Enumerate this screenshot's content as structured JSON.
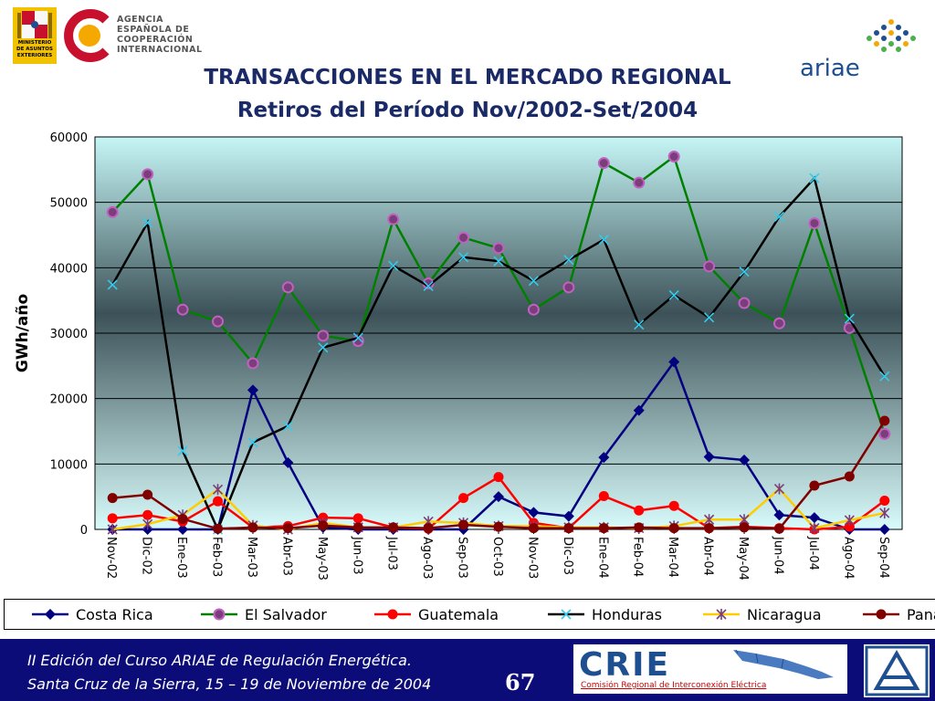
{
  "header": {
    "agency_lines": [
      "AGENCIA",
      "ESPAÑOLA DE",
      "COOPERACIÓN",
      "INTERNACIONAL"
    ],
    "ministry_lines": [
      "MINISTERIO",
      "DE ASUNTOS",
      "EXTERIORES"
    ],
    "ariae_logo": "ariae"
  },
  "chart_data": {
    "type": "line",
    "title": "TRANSACCIONES EN EL MERCADO REGIONAL",
    "subtitle": "Retiros del Período Nov/2002-Set/2004",
    "ylabel": "GWh/año",
    "xlabel": "",
    "ylim": [
      0,
      60000
    ],
    "yticks": [
      0,
      10000,
      20000,
      30000,
      40000,
      50000,
      60000
    ],
    "grid": true,
    "legend_position": "bottom",
    "categories": [
      "Nov-02",
      "Dic-02",
      "Ene-03",
      "Feb-03",
      "Mar-03",
      "Abr-03",
      "May-03",
      "Jun-03",
      "Jul-03",
      "Ago-03",
      "Sep-03",
      "Oct-03",
      "Nov-03",
      "Dic-03",
      "Ene-04",
      "Feb-04",
      "Mar-04",
      "Abr-04",
      "May-04",
      "Jun-04",
      "Jul-04",
      "Ago-04",
      "Sep-04"
    ],
    "series": [
      {
        "name": "Costa Rica",
        "color": "#000080",
        "marker": "diamond",
        "values": [
          0,
          0,
          0,
          0,
          21300,
          10200,
          300,
          0,
          0,
          0,
          0,
          5000,
          2600,
          2000,
          11000,
          18200,
          25600,
          11100,
          10600,
          2200,
          1800,
          0,
          0
        ]
      },
      {
        "name": "El Salvador",
        "color": "#008000",
        "marker": "circle-purple",
        "values": [
          48500,
          54300,
          33600,
          31800,
          25400,
          37000,
          29600,
          28800,
          47400,
          37600,
          44600,
          43000,
          33600,
          37000,
          56000,
          53000,
          57000,
          40200,
          34600,
          31500,
          46800,
          30800,
          14600
        ]
      },
      {
        "name": "Guatemala",
        "color": "#ff0000",
        "marker": "circle",
        "values": [
          1700,
          2200,
          1200,
          4300,
          300,
          500,
          1800,
          1700,
          300,
          100,
          4800,
          8000,
          1000,
          200,
          5100,
          2900,
          3600,
          200,
          400,
          200,
          0,
          400,
          4400
        ]
      },
      {
        "name": "Honduras",
        "color": "#000000",
        "marker": "x",
        "values": [
          37400,
          46900,
          12000,
          0,
          13300,
          15800,
          27800,
          29300,
          40300,
          37200,
          41600,
          41000,
          38000,
          41200,
          44300,
          31300,
          35800,
          32400,
          39400,
          47800,
          53700,
          32200,
          23400
        ]
      },
      {
        "name": "Nicaragua",
        "color": "#ffcc00",
        "marker": "star",
        "values": [
          0,
          800,
          2200,
          6100,
          600,
          0,
          1000,
          300,
          300,
          1200,
          1000,
          500,
          500,
          300,
          300,
          200,
          500,
          1500,
          1500,
          6200,
          200,
          1400,
          2500
        ]
      },
      {
        "name": "Panamá",
        "color": "#800000",
        "marker": "circle",
        "values": [
          4800,
          5300,
          1600,
          100,
          300,
          200,
          600,
          300,
          300,
          200,
          700,
          400,
          200,
          200,
          200,
          300,
          200,
          200,
          300,
          100,
          6700,
          8100,
          16600
        ]
      }
    ]
  },
  "footer": {
    "line1": "II Edición del Curso ARIAE de Regulación Energética.",
    "line2": "Santa Cruz de la Sierra, 15 – 19  de Noviembre de 2004",
    "page_number": "67",
    "crie_logo": "CRIE",
    "crie_subtitle": "Comisión Regional de Interconexión Eléctrica"
  }
}
